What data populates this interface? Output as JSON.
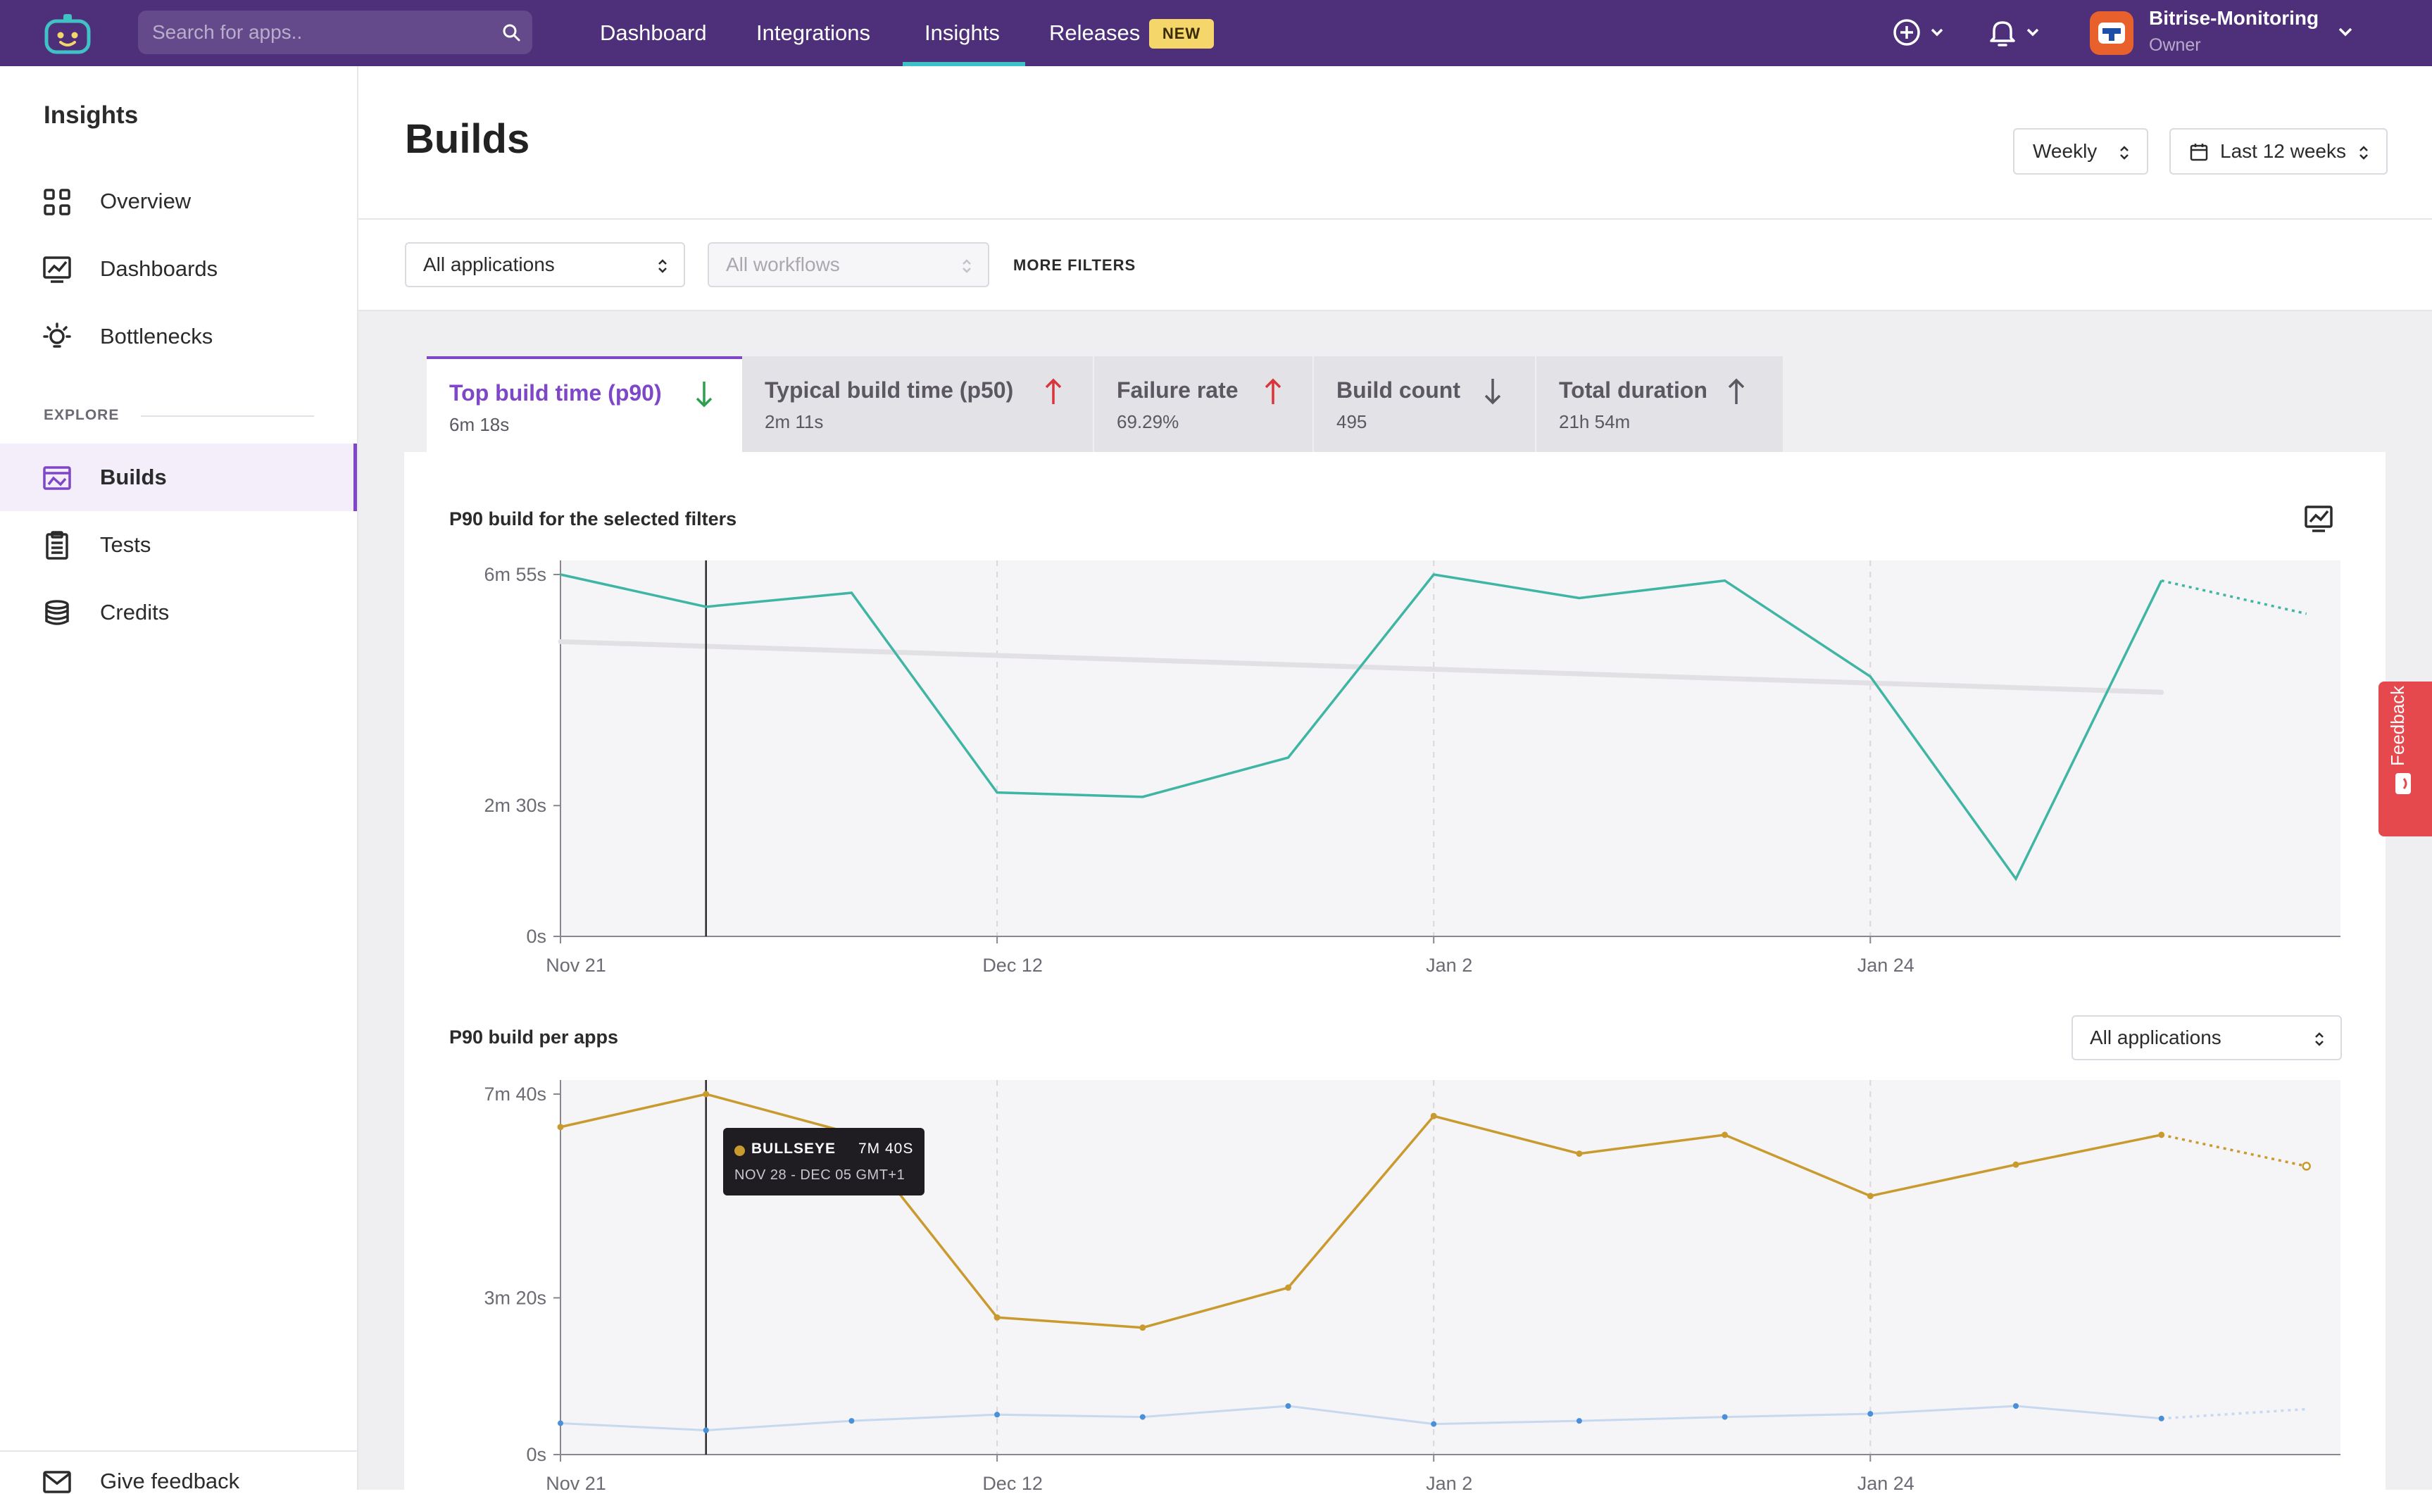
{
  "topbar": {
    "search_placeholder": "Search for apps..",
    "nav": [
      "Dashboard",
      "Integrations",
      "Insights",
      "Releases"
    ],
    "active_nav": "Insights",
    "new_badge": "NEW",
    "org_name": "Bitrise-Monitoring",
    "org_role": "Owner"
  },
  "sidebar": {
    "title": "Insights",
    "items": [
      {
        "label": "Overview",
        "icon": "grid-icon"
      },
      {
        "label": "Dashboards",
        "icon": "chart-monitor-icon"
      },
      {
        "label": "Bottlenecks",
        "icon": "lightbulb-icon"
      }
    ],
    "explore_label": "EXPLORE",
    "explore_items": [
      {
        "label": "Builds",
        "icon": "builds-icon",
        "active": true
      },
      {
        "label": "Tests",
        "icon": "clipboard-icon"
      },
      {
        "label": "Credits",
        "icon": "coins-icon"
      }
    ],
    "footer_label": "Give feedback"
  },
  "header": {
    "title": "Builds",
    "interval": "Weekly",
    "range": "Last 12 weeks"
  },
  "filters": {
    "applications": "All applications",
    "workflows": "All workflows",
    "more": "MORE FILTERS"
  },
  "tabs": [
    {
      "label": "Top build time (p90)",
      "value": "6m 18s",
      "trend": "down",
      "trend_color": "#2e9e4f",
      "active": true
    },
    {
      "label": "Typical build time (p50)",
      "value": "2m 11s",
      "trend": "up",
      "trend_color": "#d6363c"
    },
    {
      "label": "Failure rate",
      "value": "69.29%",
      "trend": "up",
      "trend_color": "#d6363c"
    },
    {
      "label": "Build count",
      "value": "495",
      "trend": "down",
      "trend_color": "#5b5862"
    },
    {
      "label": "Total duration",
      "value": "21h 54m",
      "trend": "up",
      "trend_color": "#5b5862"
    }
  ],
  "chart1_title": "P90 build for the selected filters",
  "chart2_title": "P90 build per apps",
  "chart2_filter": "All applications",
  "feedback_label": "Feedback",
  "tooltip": {
    "name": "BULLSEYE",
    "value": "7M 40S",
    "range": "NOV 28 - DEC 05 GMT+1"
  },
  "colors": {
    "brand": "#4e2f7a",
    "accent": "#7e47c9",
    "teal_series": "#3fb5a3",
    "gold_series": "#c99a2e",
    "blue_series": "#4a90d9"
  },
  "chart_data": [
    {
      "type": "line",
      "ylim_seconds": [
        0,
        415
      ],
      "ytick_seconds": [
        0,
        150,
        415
      ],
      "ytick_labels": [
        "0s",
        "2m 30s",
        "6m 55s"
      ],
      "xtick_labels": [
        "Nov 21",
        "Dec 12",
        "Jan 2",
        "Jan 24"
      ],
      "xtick_indexes": [
        0,
        3,
        6,
        9
      ],
      "series": [
        {
          "color": "#3fb5a3",
          "values_seconds": [
            415,
            378,
            394,
            165,
            160,
            205,
            415,
            388,
            408,
            298,
            66,
            408
          ],
          "projected_values_seconds": [
            408,
            370
          ]
        }
      ],
      "trend_line_seconds": [
        338,
        280
      ],
      "highlight_index": 1
    },
    {
      "type": "line",
      "ylim_seconds": [
        0,
        460
      ],
      "ytick_seconds": [
        0,
        200,
        460
      ],
      "ytick_labels": [
        "0s",
        "3m 20s",
        "7m 40s"
      ],
      "xtick_labels": [
        "Nov 21",
        "Dec 12",
        "Jan 2",
        "Jan 24"
      ],
      "xtick_indexes": [
        0,
        3,
        6,
        9
      ],
      "series": [
        {
          "name": "BULLSEYE",
          "color": "#c99a2e",
          "values_seconds": [
            418,
            460,
            410,
            175,
            162,
            213,
            432,
            384,
            408,
            330,
            370,
            408
          ],
          "projected_values_seconds": [
            408,
            368
          ]
        },
        {
          "color": "#4a90d9",
          "values_seconds": [
            40,
            31,
            43,
            51,
            48,
            62,
            39,
            43,
            48,
            52,
            62,
            46
          ],
          "projected_values_seconds": [
            46,
            58
          ]
        }
      ],
      "highlight_index": 1
    }
  ]
}
